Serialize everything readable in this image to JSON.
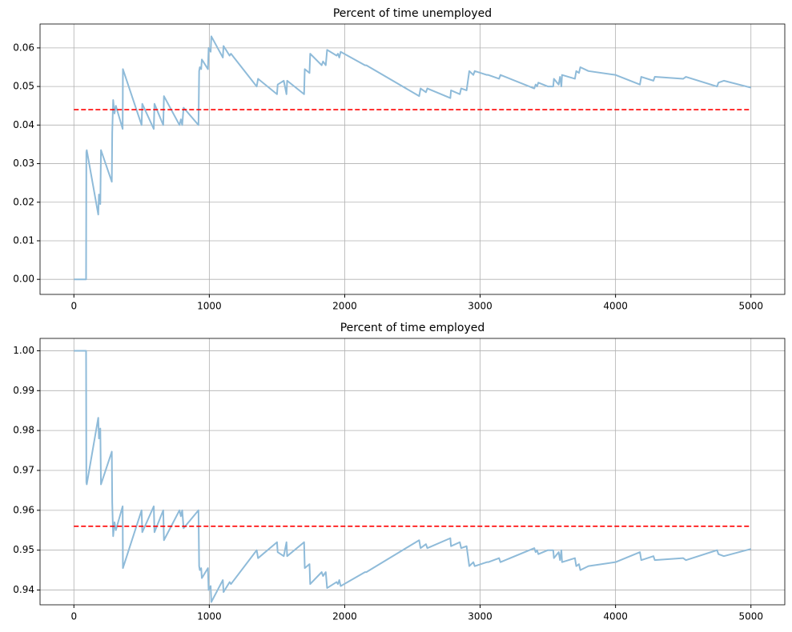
{
  "chart_data": [
    {
      "type": "line",
      "title": "Percent of time unemployed",
      "x": [
        0,
        90,
        92,
        95,
        180,
        185,
        195,
        200,
        280,
        283,
        290,
        300,
        310,
        360,
        362,
        500,
        505,
        590,
        595,
        660,
        665,
        780,
        790,
        800,
        810,
        920,
        925,
        930,
        940,
        945,
        990,
        995,
        1010,
        1015,
        1100,
        1105,
        1150,
        1160,
        1350,
        1360,
        1500,
        1505,
        1550,
        1570,
        1575,
        1700,
        1705,
        1740,
        1745,
        1830,
        1840,
        1860,
        1870,
        1940,
        1950,
        1960,
        1970,
        2150,
        2160,
        2550,
        2560,
        2600,
        2610,
        2780,
        2785,
        2850,
        2860,
        2900,
        2920,
        2950,
        2960,
        3050,
        3060,
        3140,
        3150,
        3400,
        3410,
        3420,
        3430,
        3500,
        3540,
        3545,
        3580,
        3590,
        3600,
        3605,
        3700,
        3710,
        3730,
        3740,
        3800,
        4000,
        4180,
        4190,
        4280,
        4290,
        4500,
        4520,
        4750,
        4760,
        4800,
        5000
      ],
      "series": [
        {
          "color": "#8fbbd9",
          "values": [
            0,
            0,
            0.033,
            0.0335,
            0.0168,
            0.022,
            0.0195,
            0.0335,
            0.0253,
            0.038,
            0.0465,
            0.043,
            0.045,
            0.039,
            0.0545,
            0.04,
            0.0455,
            0.039,
            0.0455,
            0.04,
            0.0475,
            0.04,
            0.0415,
            0.04,
            0.0445,
            0.04,
            0.054,
            0.055,
            0.0545,
            0.057,
            0.0545,
            0.06,
            0.059,
            0.063,
            0.0575,
            0.0605,
            0.058,
            0.0585,
            0.05,
            0.052,
            0.048,
            0.0505,
            0.0515,
            0.048,
            0.0515,
            0.048,
            0.0545,
            0.0535,
            0.0585,
            0.0555,
            0.0565,
            0.0555,
            0.0595,
            0.058,
            0.0585,
            0.0575,
            0.059,
            0.0555,
            0.0555,
            0.0475,
            0.0495,
            0.0485,
            0.0495,
            0.047,
            0.049,
            0.048,
            0.0495,
            0.049,
            0.054,
            0.053,
            0.054,
            0.053,
            0.053,
            0.052,
            0.053,
            0.0495,
            0.0505,
            0.05,
            0.051,
            0.05,
            0.05,
            0.052,
            0.0505,
            0.0525,
            0.05,
            0.053,
            0.052,
            0.054,
            0.0535,
            0.055,
            0.054,
            0.053,
            0.0505,
            0.0525,
            0.0515,
            0.0525,
            0.052,
            0.0525,
            0.05,
            0.051,
            0.0515,
            0.0497
          ]
        }
      ],
      "hline": {
        "value": 0.044,
        "color": "red",
        "style": "dashed",
        "x": [
          0,
          5000
        ]
      },
      "xlim": [
        -250,
        5250
      ],
      "xticks": [
        0,
        1000,
        2000,
        3000,
        4000,
        5000
      ],
      "ylim": [
        -0.0039,
        0.0662
      ],
      "yticks": [
        {
          "value": 0,
          "label": "0.00"
        },
        {
          "value": 0.01,
          "label": "0.01"
        },
        {
          "value": 0.02,
          "label": "0.02"
        },
        {
          "value": 0.03,
          "label": "0.03"
        },
        {
          "value": 0.04,
          "label": "0.04"
        },
        {
          "value": 0.05,
          "label": "0.05"
        },
        {
          "value": 0.06,
          "label": "0.06"
        }
      ],
      "grid": true
    },
    {
      "type": "line",
      "title": "Percent of time employed",
      "x": [
        0,
        90,
        92,
        95,
        180,
        185,
        195,
        200,
        280,
        283,
        290,
        300,
        310,
        360,
        362,
        500,
        505,
        590,
        595,
        660,
        665,
        780,
        790,
        800,
        810,
        920,
        925,
        930,
        940,
        945,
        990,
        995,
        1010,
        1015,
        1100,
        1105,
        1150,
        1160,
        1350,
        1360,
        1500,
        1505,
        1550,
        1570,
        1575,
        1700,
        1705,
        1740,
        1745,
        1830,
        1840,
        1860,
        1870,
        1940,
        1950,
        1960,
        1970,
        2150,
        2160,
        2550,
        2560,
        2600,
        2610,
        2780,
        2785,
        2850,
        2860,
        2900,
        2920,
        2950,
        2960,
        3050,
        3060,
        3140,
        3150,
        3400,
        3410,
        3420,
        3430,
        3500,
        3540,
        3545,
        3580,
        3590,
        3600,
        3605,
        3700,
        3710,
        3730,
        3740,
        3800,
        4000,
        4180,
        4190,
        4280,
        4290,
        4500,
        4520,
        4750,
        4760,
        4800,
        5000
      ],
      "series": [
        {
          "color": "#8fbbd9",
          "values": [
            1,
            1,
            0.967,
            0.9665,
            0.9832,
            0.978,
            0.9805,
            0.9665,
            0.9747,
            0.962,
            0.9535,
            0.957,
            0.955,
            0.961,
            0.9455,
            0.96,
            0.9545,
            0.961,
            0.9545,
            0.96,
            0.9525,
            0.96,
            0.9585,
            0.96,
            0.9555,
            0.96,
            0.946,
            0.945,
            0.9455,
            0.943,
            0.9455,
            0.94,
            0.941,
            0.937,
            0.9425,
            0.9395,
            0.942,
            0.9415,
            0.95,
            0.948,
            0.952,
            0.9495,
            0.9485,
            0.952,
            0.9485,
            0.952,
            0.9455,
            0.9465,
            0.9415,
            0.9445,
            0.9435,
            0.9445,
            0.9405,
            0.942,
            0.9415,
            0.9425,
            0.941,
            0.9445,
            0.9445,
            0.9525,
            0.9505,
            0.9515,
            0.9505,
            0.953,
            0.951,
            0.952,
            0.9505,
            0.951,
            0.946,
            0.947,
            0.946,
            0.947,
            0.947,
            0.948,
            0.947,
            0.9505,
            0.9495,
            0.95,
            0.949,
            0.95,
            0.95,
            0.948,
            0.9495,
            0.9475,
            0.95,
            0.947,
            0.948,
            0.946,
            0.9465,
            0.945,
            0.946,
            0.947,
            0.9495,
            0.9475,
            0.9485,
            0.9475,
            0.948,
            0.9475,
            0.95,
            0.949,
            0.9485,
            0.9503
          ]
        }
      ],
      "hline": {
        "value": 0.956,
        "color": "red",
        "style": "dashed",
        "x": [
          0,
          5000
        ]
      },
      "xlim": [
        -250,
        5250
      ],
      "xticks": [
        0,
        1000,
        2000,
        3000,
        4000,
        5000
      ],
      "ylim": [
        0.9363,
        1.0031
      ],
      "yticks": [
        {
          "value": 0.94,
          "label": "0.94"
        },
        {
          "value": 0.95,
          "label": "0.95"
        },
        {
          "value": 0.96,
          "label": "0.96"
        },
        {
          "value": 0.97,
          "label": "0.97"
        },
        {
          "value": 0.98,
          "label": "0.98"
        },
        {
          "value": 0.99,
          "label": "0.99"
        },
        {
          "value": 1,
          "label": "1.00"
        }
      ],
      "grid": true
    }
  ]
}
